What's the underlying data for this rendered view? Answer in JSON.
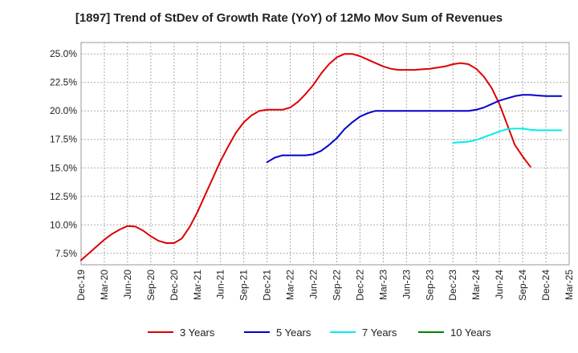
{
  "chart_data": {
    "type": "line",
    "title": "[1897]  Trend of StDev of Growth Rate (YoY) of 12Mo Mov Sum of Revenues",
    "xlabel": "",
    "ylabel": "",
    "ylim": [
      6.5,
      26.0
    ],
    "y_ticks": [
      7.5,
      10.0,
      12.5,
      15.0,
      17.5,
      20.0,
      22.5,
      25.0
    ],
    "y_tick_labels": [
      "7.5%",
      "10.0%",
      "12.5%",
      "15.0%",
      "17.5%",
      "20.0%",
      "22.5%",
      "25.0%"
    ],
    "x_tick_labels": [
      "Dec-19",
      "Mar-20",
      "Jun-20",
      "Sep-20",
      "Dec-20",
      "Mar-21",
      "Jun-21",
      "Sep-21",
      "Dec-21",
      "Mar-22",
      "Jun-22",
      "Sep-22",
      "Dec-22",
      "Mar-23",
      "Jun-23",
      "Sep-23",
      "Dec-23",
      "Mar-24",
      "Jun-24",
      "Sep-24",
      "Dec-24",
      "Mar-25"
    ],
    "grid": true,
    "legend_position": "bottom",
    "series": [
      {
        "name": "3 Years",
        "color": "#dd0000",
        "start_month_index": 0,
        "values": [
          6.9,
          7.5,
          8.1,
          8.7,
          9.2,
          9.6,
          9.9,
          9.85,
          9.5,
          9.0,
          8.6,
          8.4,
          8.4,
          8.8,
          9.8,
          11.1,
          12.6,
          14.1,
          15.6,
          16.9,
          18.1,
          19.0,
          19.6,
          20.0,
          20.1,
          20.1,
          20.1,
          20.3,
          20.8,
          21.5,
          22.3,
          23.3,
          24.1,
          24.7,
          25.0,
          25.0,
          24.8,
          24.5,
          24.2,
          23.9,
          23.7,
          23.6,
          23.6,
          23.6,
          23.65,
          23.7,
          23.8,
          23.9,
          24.1,
          24.2,
          24.1,
          23.7,
          23.0,
          22.0,
          20.6,
          18.8,
          17.0,
          16.0,
          15.1
        ]
      },
      {
        "name": "5 Years",
        "color": "#0000cc",
        "start_month_index": 24,
        "values": [
          15.5,
          15.9,
          16.1,
          16.1,
          16.1,
          16.1,
          16.2,
          16.5,
          17.0,
          17.6,
          18.4,
          19.0,
          19.5,
          19.8,
          20.0,
          20.0,
          20.0,
          20.0,
          20.0,
          20.0,
          20.0,
          20.0,
          20.0,
          20.0,
          20.0,
          20.0,
          20.0,
          20.1,
          20.3,
          20.6,
          20.9,
          21.1,
          21.3,
          21.4,
          21.4,
          21.35,
          21.3,
          21.3,
          21.3
        ]
      },
      {
        "name": "7 Years",
        "color": "#00eeee",
        "start_month_index": 48,
        "values": [
          17.2,
          17.25,
          17.3,
          17.45,
          17.7,
          17.95,
          18.2,
          18.4,
          18.45,
          18.45,
          18.35,
          18.3,
          18.3,
          18.3,
          18.3
        ]
      },
      {
        "name": "10 Years",
        "color": "#008000",
        "start_month_index": 0,
        "values": []
      }
    ]
  }
}
